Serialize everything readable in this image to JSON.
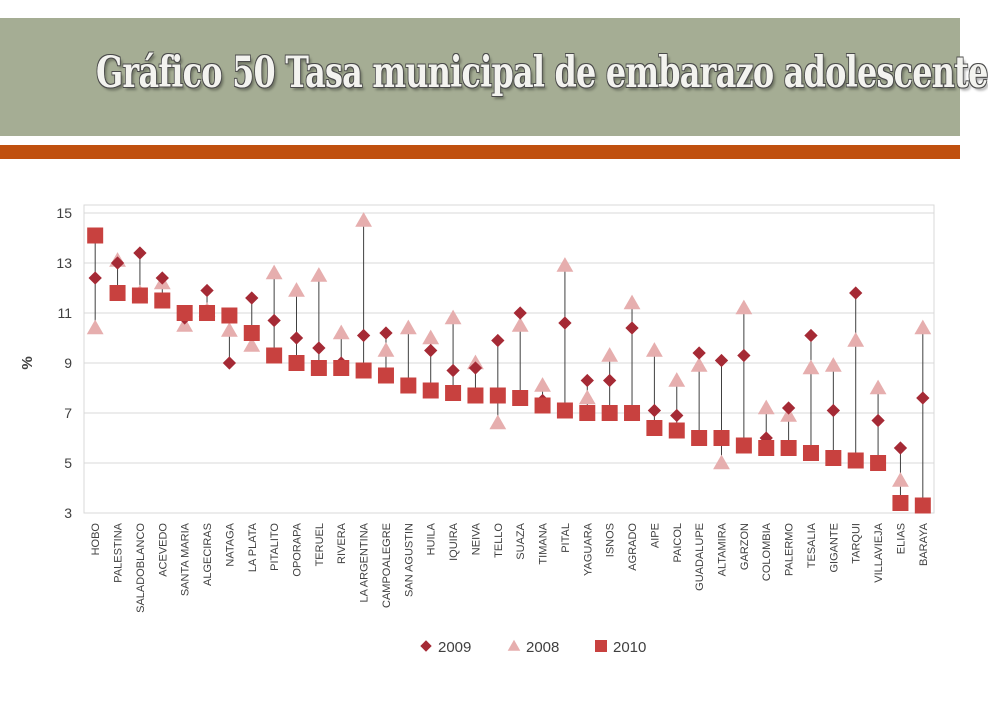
{
  "slide": {
    "title": "Gráfico 50 Tasa municipal de embarazo adolescente"
  },
  "colors": {
    "title_band": "#a5ad94",
    "accent_bar": "#c0500f",
    "series_2009": "#a52a35",
    "series_2008": "#e6aeae",
    "series_2010": "#c8413f",
    "whisker": "#404040"
  },
  "chart_data": {
    "type": "scatter",
    "title": "",
    "xlabel": "",
    "ylabel": "%",
    "ylim": [
      3,
      15
    ],
    "y_ticks": [
      3,
      5,
      7,
      9,
      11,
      13,
      15
    ],
    "grid": "horizontal",
    "legend_position": "bottom",
    "categories": [
      "HOBO",
      "PALESTINA",
      "SALADOBLANCO",
      "ACEVEDO",
      "SANTA MARIA",
      "ALGECIRAS",
      "NATAGA",
      "LA PLATA",
      "PITALITO",
      "OPORAPA",
      "TERUEL",
      "RIVERA",
      "LA ARGENTINA",
      "CAMPOALEGRE",
      "SAN AGUSTIN",
      "HUILA",
      "IQUIRA",
      "NEIVA",
      "TELLO",
      "SUAZA",
      "TIMANA",
      "PITAL",
      "YAGUARA",
      "ISNOS",
      "AGRADO",
      "AIPE",
      "PAICOL",
      "GUADALUPE",
      "ALTAMIRA",
      "GARZON",
      "COLOMBIA",
      "PALERMO",
      "TESALIA",
      "GIGANTE",
      "TARQUI",
      "VILLAVIEJA",
      "ELIAS",
      "BARAYA"
    ],
    "series": [
      {
        "name": "2009",
        "marker": "diamond",
        "values": [
          12.4,
          13.0,
          13.4,
          12.4,
          10.8,
          11.9,
          9.0,
          11.6,
          10.7,
          10.0,
          9.6,
          9.0,
          10.1,
          10.2,
          8.1,
          9.5,
          8.7,
          8.8,
          9.9,
          11.0,
          7.5,
          10.6,
          8.3,
          8.3,
          10.4,
          7.1,
          6.9,
          9.4,
          9.1,
          9.3,
          6.0,
          7.2,
          10.1,
          7.1,
          11.8,
          6.7,
          5.6,
          7.6
        ]
      },
      {
        "name": "2008",
        "marker": "triangle",
        "values": [
          10.4,
          13.1,
          11.8,
          12.2,
          10.5,
          11.1,
          10.3,
          9.7,
          12.6,
          11.9,
          12.5,
          10.2,
          14.7,
          9.5,
          10.4,
          10.0,
          10.8,
          9.0,
          6.6,
          10.5,
          8.1,
          12.9,
          7.6,
          9.3,
          11.4,
          9.5,
          8.3,
          8.9,
          5.0,
          11.2,
          7.2,
          6.9,
          8.8,
          8.9,
          9.9,
          8.0,
          4.3,
          10.4
        ]
      },
      {
        "name": "2010",
        "marker": "square",
        "values": [
          14.1,
          11.8,
          11.7,
          11.5,
          11.0,
          11.0,
          10.9,
          10.2,
          9.3,
          9.0,
          8.8,
          8.8,
          8.7,
          8.5,
          8.1,
          7.9,
          7.8,
          7.7,
          7.7,
          7.6,
          7.3,
          7.1,
          7.0,
          7.0,
          7.0,
          6.4,
          6.3,
          6.0,
          6.0,
          5.7,
          5.6,
          5.6,
          5.4,
          5.2,
          5.1,
          5.0,
          3.4,
          3.3
        ]
      }
    ],
    "legend": [
      {
        "label": "2009",
        "marker": "diamond"
      },
      {
        "label": "2008",
        "marker": "triangle"
      },
      {
        "label": "2010",
        "marker": "square"
      }
    ]
  }
}
